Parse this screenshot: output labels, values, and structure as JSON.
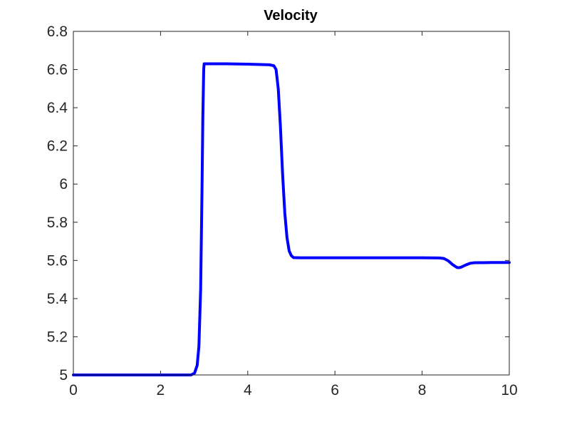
{
  "chart_data": {
    "type": "line",
    "title": "Velocity",
    "xlabel": "",
    "ylabel": "",
    "xlim": [
      0,
      10
    ],
    "ylim": [
      5,
      6.8
    ],
    "xticks": [
      0,
      2,
      4,
      6,
      8,
      10
    ],
    "yticks": [
      5,
      5.2,
      5.4,
      5.6,
      5.8,
      6,
      6.2,
      6.4,
      6.6,
      6.8
    ],
    "xtick_labels": [
      "0",
      "2",
      "4",
      "6",
      "8",
      "10"
    ],
    "ytick_labels": [
      "5",
      "5.2",
      "5.4",
      "5.6",
      "5.8",
      "6",
      "6.2",
      "6.4",
      "6.6",
      "6.8"
    ],
    "grid": false,
    "series": [
      {
        "color": "#0000ff",
        "x": [
          0,
          2.5,
          2.7,
          2.78,
          2.84,
          2.88,
          2.92,
          2.95,
          2.97,
          2.99,
          3.0,
          3.5,
          4.0,
          4.5,
          4.6,
          4.65,
          4.7,
          4.75,
          4.8,
          4.85,
          4.9,
          4.95,
          5.0,
          5.05,
          5.2,
          6.0,
          7.0,
          8.0,
          8.4,
          8.5,
          8.6,
          8.7,
          8.8,
          8.85,
          8.9,
          9.0,
          9.1,
          9.2,
          9.4,
          9.6,
          10.0
        ],
        "y": [
          5.0,
          5.0,
          5.0,
          5.01,
          5.05,
          5.15,
          5.45,
          5.95,
          6.35,
          6.6,
          6.63,
          6.63,
          6.628,
          6.625,
          6.62,
          6.6,
          6.5,
          6.3,
          6.05,
          5.85,
          5.72,
          5.65,
          5.625,
          5.615,
          5.614,
          5.614,
          5.614,
          5.614,
          5.613,
          5.61,
          5.598,
          5.578,
          5.563,
          5.562,
          5.565,
          5.576,
          5.585,
          5.588,
          5.588,
          5.589,
          5.589
        ]
      }
    ]
  }
}
